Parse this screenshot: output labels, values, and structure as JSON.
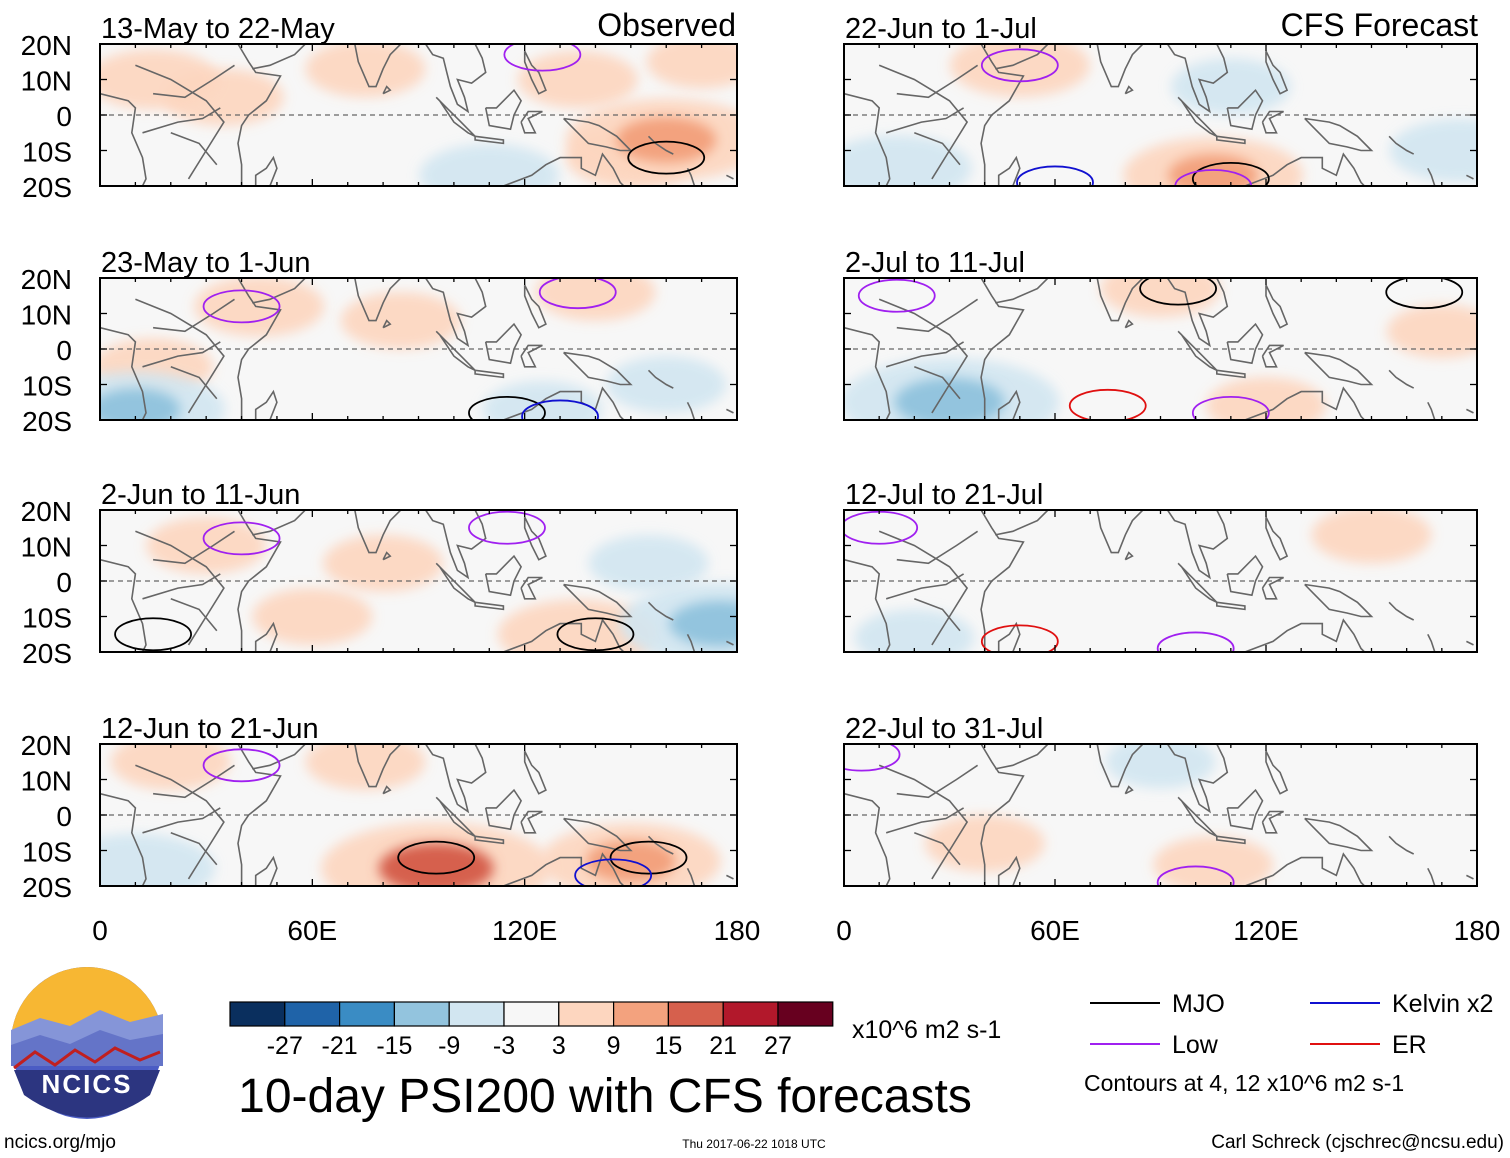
{
  "header": {
    "observed_label": "Observed",
    "forecast_label": "CFS Forecast"
  },
  "axes": {
    "lat_ticks": [
      "20N",
      "10N",
      "0",
      "10S",
      "20S"
    ],
    "lon_ticks": [
      "0",
      "60E",
      "120E",
      "180"
    ]
  },
  "chart_data": [
    {
      "type": "heatmap",
      "title": "13-May to 22-May",
      "column": "Observed",
      "xlim": [
        0,
        180
      ],
      "ylim": [
        -20,
        20
      ],
      "anomalies": [
        {
          "lon": 15,
          "lat": 10,
          "value": 5
        },
        {
          "lon": 35,
          "lat": 5,
          "value": 4
        },
        {
          "lon": 75,
          "lat": 13,
          "value": 4
        },
        {
          "lon": 135,
          "lat": 10,
          "value": 4
        },
        {
          "lon": 160,
          "lat": -7,
          "value": 12
        },
        {
          "lon": 150,
          "lat": -12,
          "value": 5
        },
        {
          "lon": 110,
          "lat": -17,
          "value": -6
        },
        {
          "lon": 170,
          "lat": 15,
          "value": 3
        }
      ],
      "contours": [
        {
          "type": "MJO",
          "lon": 160,
          "lat": -12
        },
        {
          "type": "Low",
          "lon": 125,
          "lat": 17
        }
      ]
    },
    {
      "type": "heatmap",
      "title": "23-May to 1-Jun",
      "column": "Observed",
      "xlim": [
        0,
        180
      ],
      "ylim": [
        -20,
        20
      ],
      "anomalies": [
        {
          "lon": 45,
          "lat": 12,
          "value": 5
        },
        {
          "lon": 85,
          "lat": 8,
          "value": 4
        },
        {
          "lon": 140,
          "lat": 16,
          "value": 4
        },
        {
          "lon": 15,
          "lat": -5,
          "value": 4
        },
        {
          "lon": 10,
          "lat": -17,
          "value": -10
        },
        {
          "lon": 160,
          "lat": -10,
          "value": -4
        },
        {
          "lon": 125,
          "lat": -17,
          "value": -4
        }
      ],
      "contours": [
        {
          "type": "Low",
          "lon": 40,
          "lat": 12
        },
        {
          "type": "Low",
          "lon": 135,
          "lat": 16
        },
        {
          "type": "MJO",
          "lon": 115,
          "lat": -18
        },
        {
          "type": "Kelvin x2",
          "lon": 130,
          "lat": -19
        }
      ]
    },
    {
      "type": "heatmap",
      "title": "2-Jun to 11-Jun",
      "column": "Observed",
      "xlim": [
        0,
        180
      ],
      "ylim": [
        -20,
        20
      ],
      "anomalies": [
        {
          "lon": 30,
          "lat": 10,
          "value": 4
        },
        {
          "lon": 80,
          "lat": 5,
          "value": 4
        },
        {
          "lon": 60,
          "lat": -10,
          "value": 4
        },
        {
          "lon": 135,
          "lat": -15,
          "value": 8
        },
        {
          "lon": 175,
          "lat": -12,
          "value": -12
        },
        {
          "lon": 155,
          "lat": 5,
          "value": -4
        }
      ],
      "contours": [
        {
          "type": "Low",
          "lon": 40,
          "lat": 12
        },
        {
          "type": "Low",
          "lon": 115,
          "lat": 15
        },
        {
          "type": "MJO",
          "lon": 140,
          "lat": -15
        },
        {
          "type": "MJO",
          "lon": 15,
          "lat": -15
        }
      ]
    },
    {
      "type": "heatmap",
      "title": "12-Jun to 21-Jun",
      "column": "Observed",
      "xlim": [
        0,
        180
      ],
      "ylim": [
        -20,
        20
      ],
      "anomalies": [
        {
          "lon": 95,
          "lat": -15,
          "value": 15
        },
        {
          "lon": 150,
          "lat": -13,
          "value": 10
        },
        {
          "lon": 75,
          "lat": 15,
          "value": 4
        },
        {
          "lon": 20,
          "lat": 15,
          "value": 4
        },
        {
          "lon": 10,
          "lat": -15,
          "value": -8
        }
      ],
      "contours": [
        {
          "type": "Low",
          "lon": 40,
          "lat": 14
        },
        {
          "type": "MJO",
          "lon": 95,
          "lat": -12
        },
        {
          "type": "MJO",
          "lon": 155,
          "lat": -12
        },
        {
          "type": "Kelvin x2",
          "lon": 145,
          "lat": -17
        }
      ]
    },
    {
      "type": "heatmap",
      "title": "22-Jun to 1-Jul",
      "column": "CFS Forecast",
      "xlim": [
        0,
        180
      ],
      "ylim": [
        -20,
        20
      ],
      "anomalies": [
        {
          "lon": 50,
          "lat": 14,
          "value": 6
        },
        {
          "lon": 105,
          "lat": -17,
          "value": 10
        },
        {
          "lon": 15,
          "lat": -15,
          "value": -7
        },
        {
          "lon": 175,
          "lat": -10,
          "value": -6
        },
        {
          "lon": 110,
          "lat": 8,
          "value": -4
        }
      ],
      "contours": [
        {
          "type": "Low",
          "lon": 50,
          "lat": 14
        },
        {
          "type": "Kelvin x2",
          "lon": 60,
          "lat": -19
        },
        {
          "type": "MJO",
          "lon": 110,
          "lat": -18
        },
        {
          "type": "Low",
          "lon": 105,
          "lat": -20
        }
      ]
    },
    {
      "type": "heatmap",
      "title": "2-Jul to 11-Jul",
      "column": "CFS Forecast",
      "xlim": [
        0,
        180
      ],
      "ylim": [
        -20,
        20
      ],
      "anomalies": [
        {
          "lon": 30,
          "lat": -15,
          "value": -14
        },
        {
          "lon": 90,
          "lat": 17,
          "value": 4
        },
        {
          "lon": 120,
          "lat": -16,
          "value": 4
        },
        {
          "lon": 170,
          "lat": 5,
          "value": 3
        }
      ],
      "contours": [
        {
          "type": "Low",
          "lon": 15,
          "lat": 15
        },
        {
          "type": "MJO",
          "lon": 95,
          "lat": 17
        },
        {
          "type": "MJO",
          "lon": 165,
          "lat": 16
        },
        {
          "type": "ER",
          "lon": 75,
          "lat": -16
        },
        {
          "type": "Low",
          "lon": 110,
          "lat": -18
        }
      ]
    },
    {
      "type": "heatmap",
      "title": "12-Jul to 21-Jul",
      "column": "CFS Forecast",
      "xlim": [
        0,
        180
      ],
      "ylim": [
        -20,
        20
      ],
      "anomalies": [
        {
          "lon": 150,
          "lat": 13,
          "value": 4
        },
        {
          "lon": 20,
          "lat": -16,
          "value": -4
        }
      ],
      "contours": [
        {
          "type": "Low",
          "lon": 10,
          "lat": 15
        },
        {
          "type": "ER",
          "lon": 50,
          "lat": -17
        },
        {
          "type": "Low",
          "lon": 100,
          "lat": -19
        }
      ]
    },
    {
      "type": "heatmap",
      "title": "22-Jul to 31-Jul",
      "column": "CFS Forecast",
      "xlim": [
        0,
        180
      ],
      "ylim": [
        -20,
        20
      ],
      "anomalies": [
        {
          "lon": 40,
          "lat": -8,
          "value": 4
        },
        {
          "lon": 105,
          "lat": -14,
          "value": 4
        },
        {
          "lon": 90,
          "lat": 15,
          "value": -3
        }
      ],
      "contours": [
        {
          "type": "Low",
          "lon": 5,
          "lat": 17
        },
        {
          "type": "Low",
          "lon": 100,
          "lat": -19
        }
      ]
    }
  ],
  "colorbar": {
    "labels": [
      "-27",
      "-21",
      "-15",
      "-9",
      "-3",
      "3",
      "9",
      "15",
      "21",
      "27"
    ],
    "colors": [
      "#0a2f5e",
      "#1f63a8",
      "#3a8cc4",
      "#93c4de",
      "#d2e6f1",
      "#f7f7f7",
      "#fdd6bf",
      "#f3a27e",
      "#d6604d",
      "#b2182b",
      "#67001f"
    ],
    "unit": "x10^6 m2 s-1"
  },
  "footer": {
    "main_title": "10-day PSI200 with CFS forecasts",
    "logo_text": "NCICS",
    "site": "ncics.org/mjo",
    "timestamp": "Thu 2017-06-22 1018 UTC",
    "credit": "Carl Schreck (cjschrec@ncsu.edu)"
  },
  "legend": {
    "items": [
      {
        "label": "MJO",
        "color": "#000000"
      },
      {
        "label": "Kelvin x2",
        "color": "#1010d0"
      },
      {
        "label": "Low",
        "color": "#a020f0"
      },
      {
        "label": "ER",
        "color": "#e01010"
      }
    ],
    "note": "Contours at 4, 12 x10^6 m2 s-1"
  },
  "colors": {
    "equator": "#666666",
    "coast": "#666666"
  }
}
